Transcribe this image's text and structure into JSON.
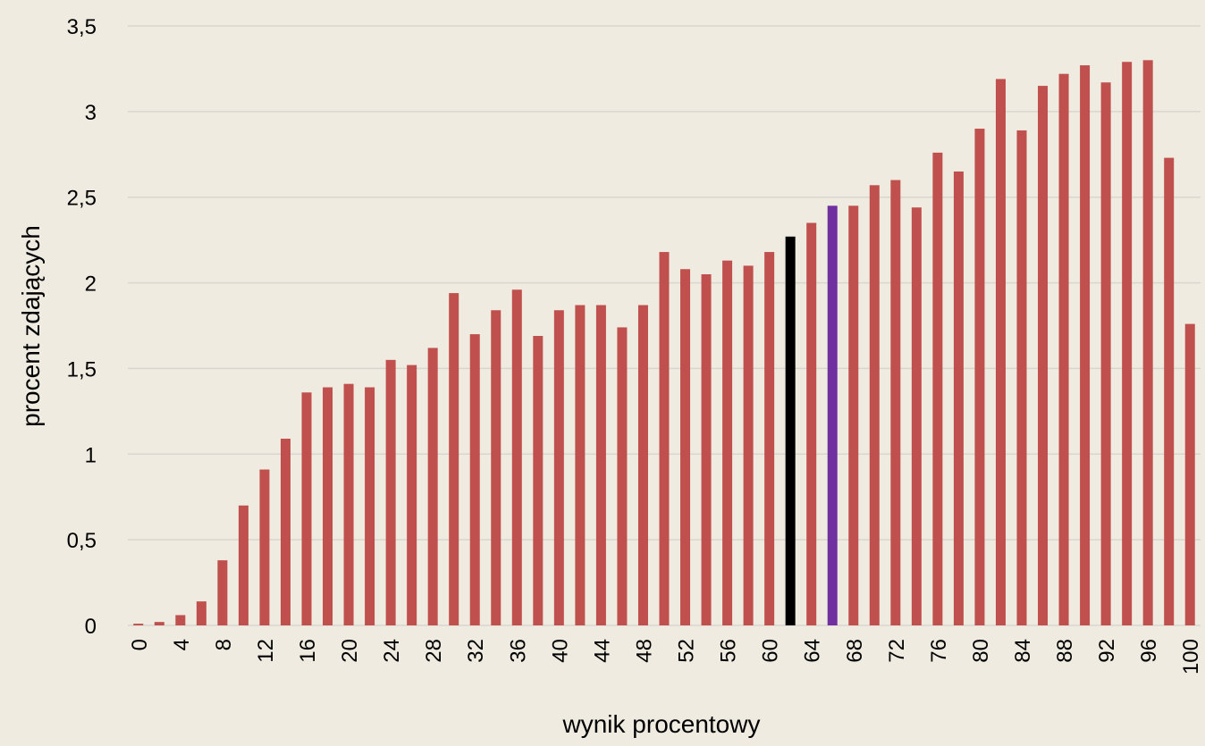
{
  "chart_data": {
    "type": "bar",
    "x_label": "wynik procentowy",
    "y_label": "procent zdających",
    "categories": [
      "0",
      null,
      "4",
      null,
      "8",
      null,
      "12",
      null,
      "16",
      null,
      "20",
      null,
      "24",
      null,
      "28",
      null,
      "32",
      null,
      "36",
      null,
      "40",
      null,
      "44",
      null,
      "48",
      null,
      "52",
      null,
      "56",
      null,
      "60",
      null,
      "64",
      null,
      "68",
      null,
      "72",
      null,
      "76",
      null,
      "80",
      null,
      "84",
      null,
      "88",
      null,
      "92",
      null,
      "96",
      null,
      "100"
    ],
    "values": [
      0.01,
      0.02,
      0.06,
      0.14,
      0.38,
      0.7,
      0.91,
      1.09,
      1.36,
      1.39,
      1.41,
      1.39,
      1.55,
      1.52,
      1.62,
      1.94,
      1.7,
      1.84,
      1.96,
      1.69,
      1.84,
      1.87,
      1.87,
      1.74,
      1.87,
      2.18,
      2.08,
      2.05,
      2.13,
      2.1,
      2.18,
      2.27,
      2.35,
      2.45,
      2.45,
      2.57,
      2.6,
      2.44,
      2.76,
      2.65,
      2.9,
      3.19,
      2.89,
      3.15,
      3.22,
      3.27,
      3.17,
      3.29,
      3.3,
      2.73,
      1.76
    ],
    "color": "#c0504d",
    "highlight_colors": {
      "31": "#000000",
      "33": "#7030a0"
    },
    "ylim": [
      0,
      3.5
    ],
    "yticks": [
      0,
      {
        "value": 0.5,
        "label": "0,5"
      },
      1,
      {
        "value": 1.5,
        "label": "1,5"
      },
      2,
      {
        "value": 2.5,
        "label": "2,5"
      },
      3,
      {
        "value": 3.5,
        "label": "3,5"
      }
    ],
    "grid": true
  }
}
